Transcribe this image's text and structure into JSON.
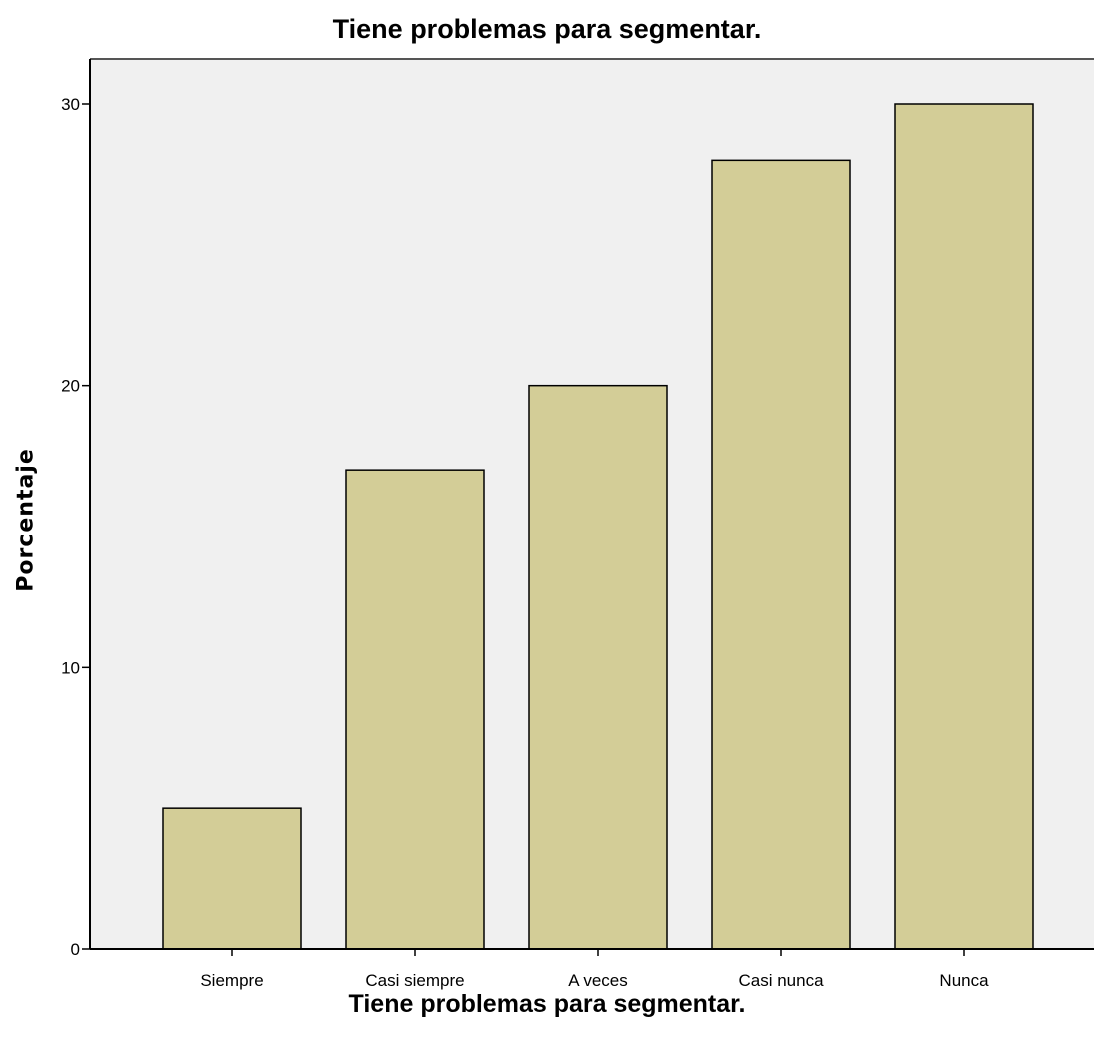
{
  "chart_data": {
    "type": "bar",
    "title": "Tiene problemas para segmentar.",
    "xlabel": "Tiene problemas para segmentar.",
    "ylabel": "Porcentaje",
    "categories": [
      "Siempre",
      "Casi siempre",
      "A veces",
      "Casi nunca",
      "Nunca"
    ],
    "values": [
      5,
      17,
      20,
      28,
      30
    ],
    "ylim": [
      0,
      32
    ],
    "yticks": [
      0,
      10,
      20,
      30
    ],
    "grid": false,
    "colors": {
      "bar_fill": "#d3cd97",
      "bar_stroke": "#000000",
      "plot_background": "#f0f0f0",
      "axis": "#000000"
    }
  }
}
